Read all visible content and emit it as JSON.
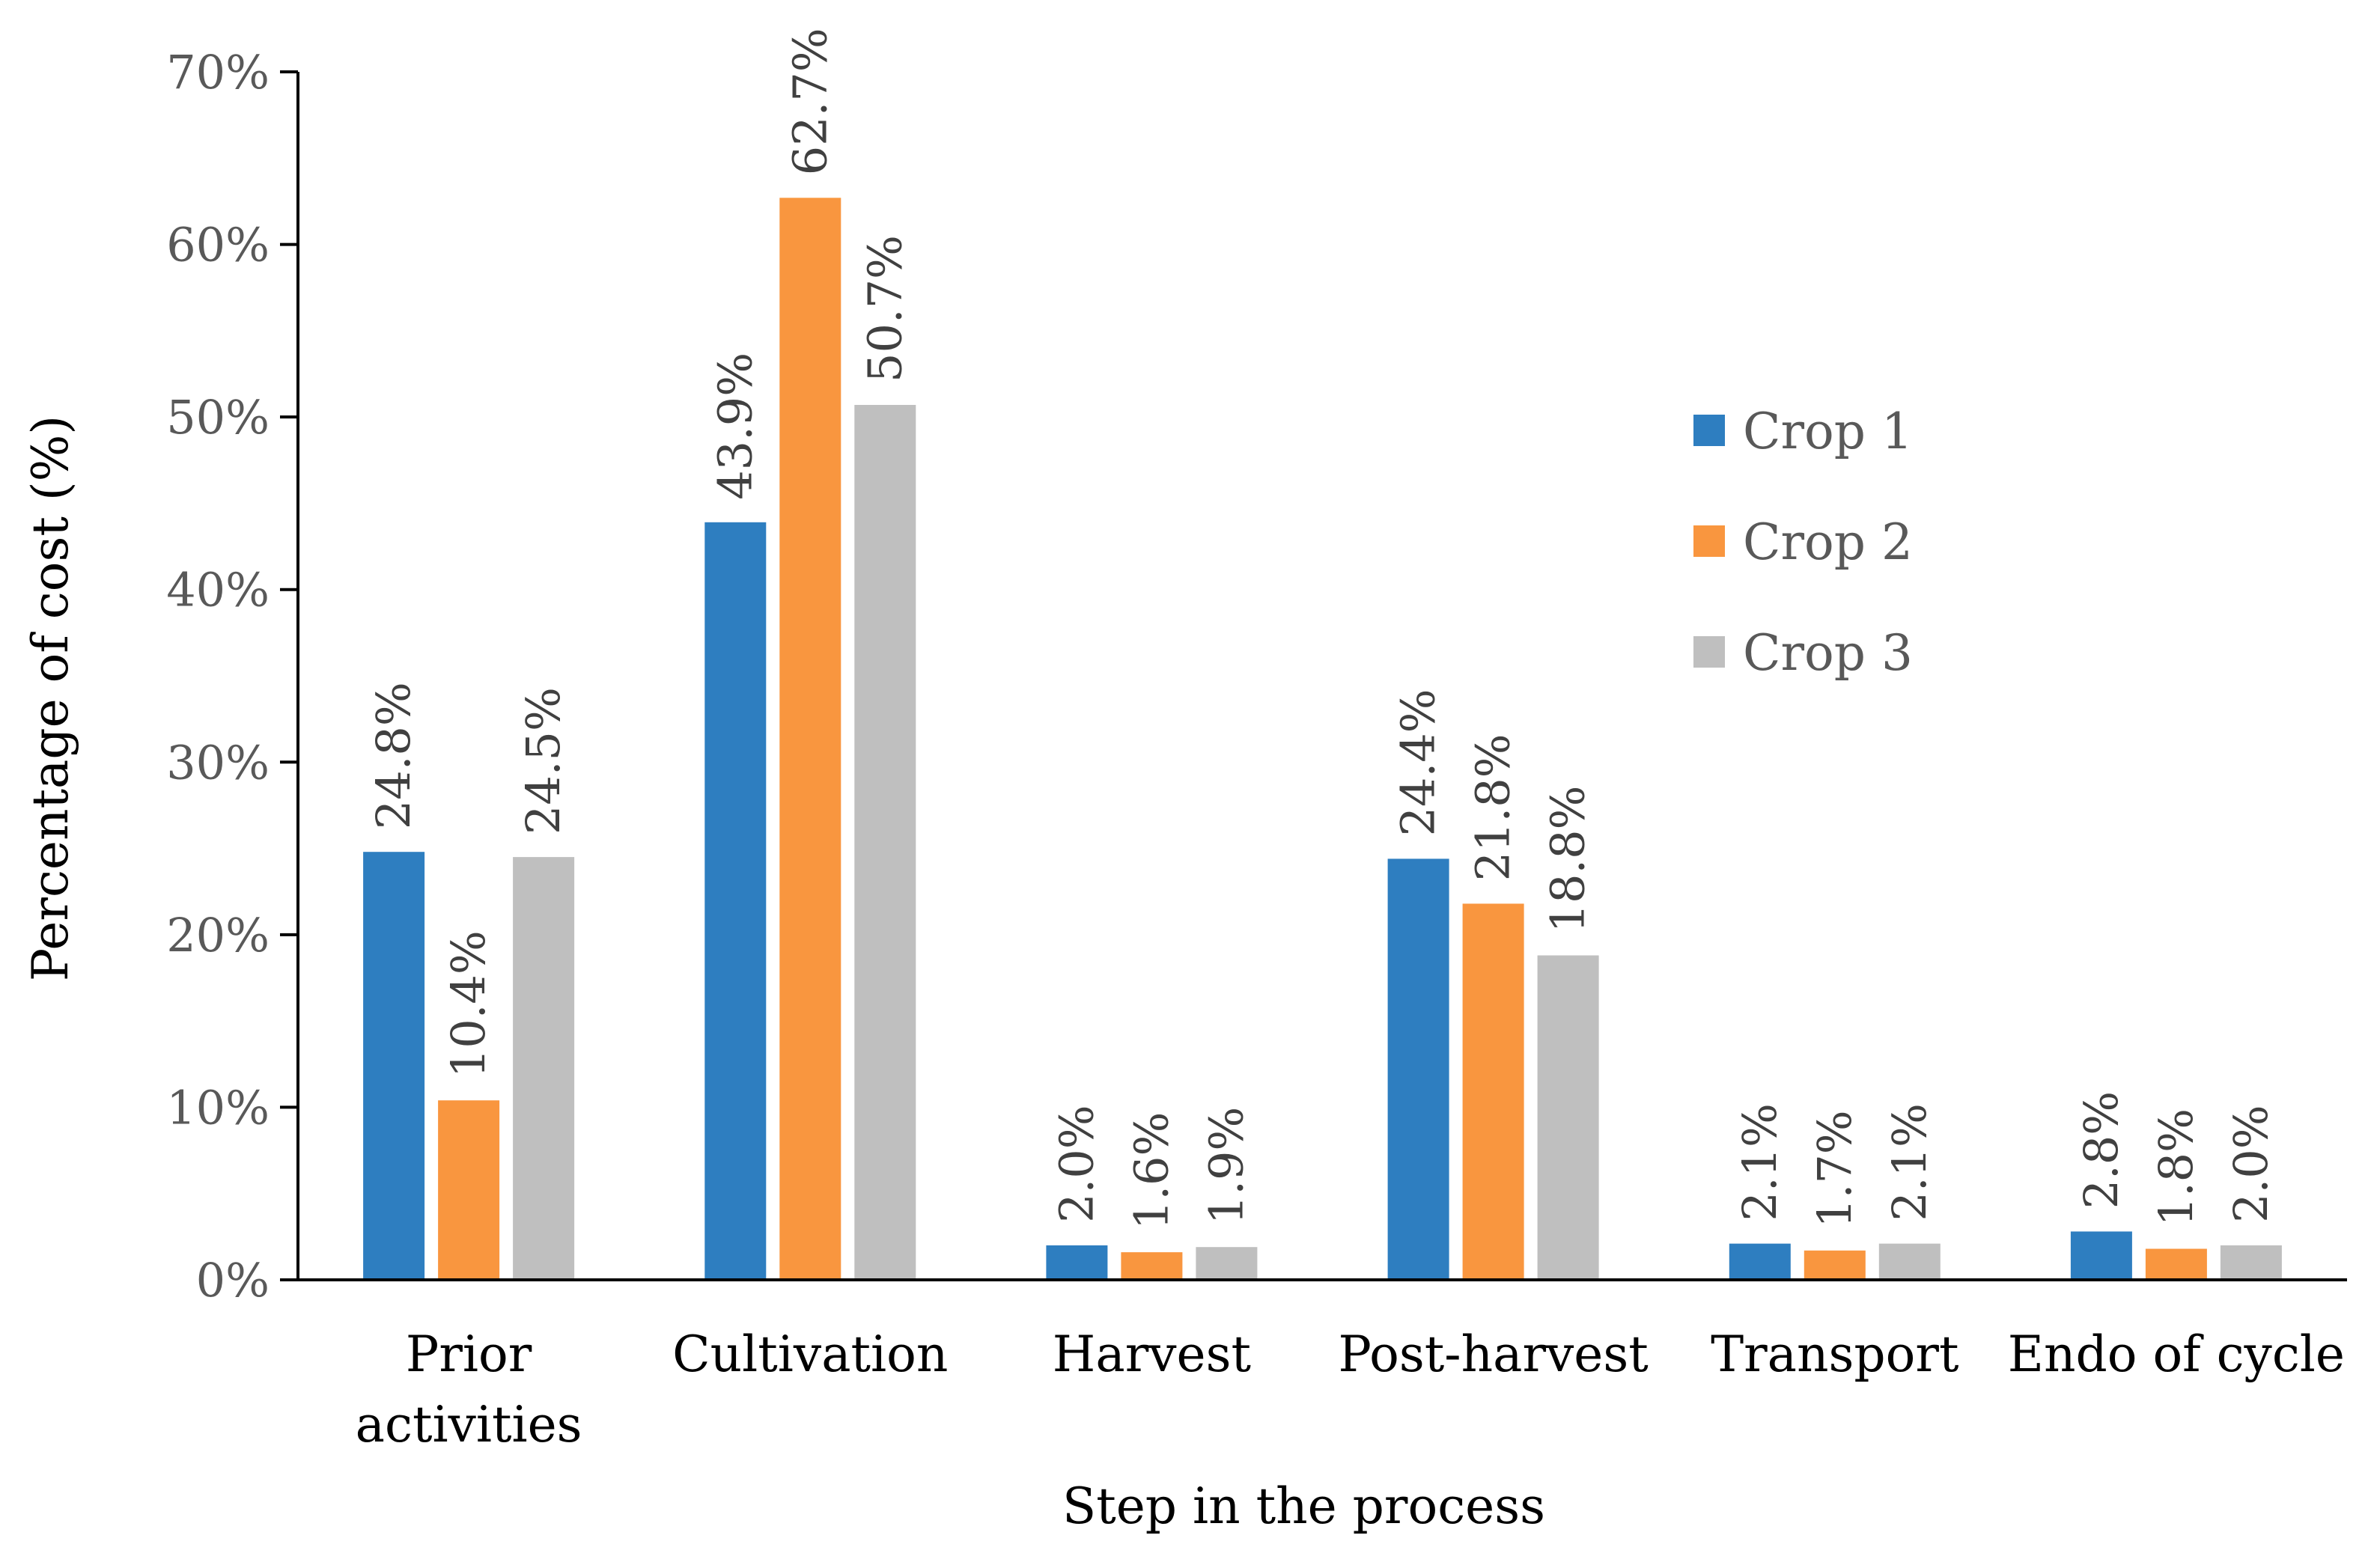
{
  "chart_data": {
    "type": "bar",
    "title": "",
    "xlabel": "Step in the process",
    "ylabel": "Percentage of cost (%)",
    "ylim": [
      0,
      70
    ],
    "yticks": [
      0,
      10,
      20,
      30,
      40,
      50,
      60,
      70
    ],
    "ytick_labels": [
      "0%",
      "10%",
      "20%",
      "30%",
      "40%",
      "50%",
      "60%",
      "70%"
    ],
    "grid": false,
    "legend_position": "right",
    "categories": [
      [
        "Prior",
        "activities"
      ],
      [
        "Cultivation"
      ],
      [
        "Harvest"
      ],
      [
        "Post-harvest"
      ],
      [
        "Transport"
      ],
      [
        "Endo of cycle"
      ]
    ],
    "series": [
      {
        "name": "Crop 1",
        "color": "#2E7EC0",
        "values": [
          24.8,
          43.9,
          2.0,
          24.4,
          2.1,
          2.8
        ],
        "labels": [
          "24.8%",
          "43.9%",
          "2.0%",
          "24.4%",
          "2.1%",
          "2.8%"
        ]
      },
      {
        "name": "Crop 2",
        "color": "#F9963F",
        "values": [
          10.4,
          62.7,
          1.6,
          21.8,
          1.7,
          1.8
        ],
        "labels": [
          "10.4%",
          "62.7%",
          "1.6%",
          "21.8%",
          "1.7%",
          "1.8%"
        ]
      },
      {
        "name": "Crop 3",
        "color": "#BFBFBF",
        "values": [
          24.5,
          50.7,
          1.9,
          18.8,
          2.1,
          2.0
        ],
        "labels": [
          "24.5%",
          "50.7%",
          "1.9%",
          "18.8%",
          "2.1%",
          "2.0%"
        ]
      }
    ]
  }
}
